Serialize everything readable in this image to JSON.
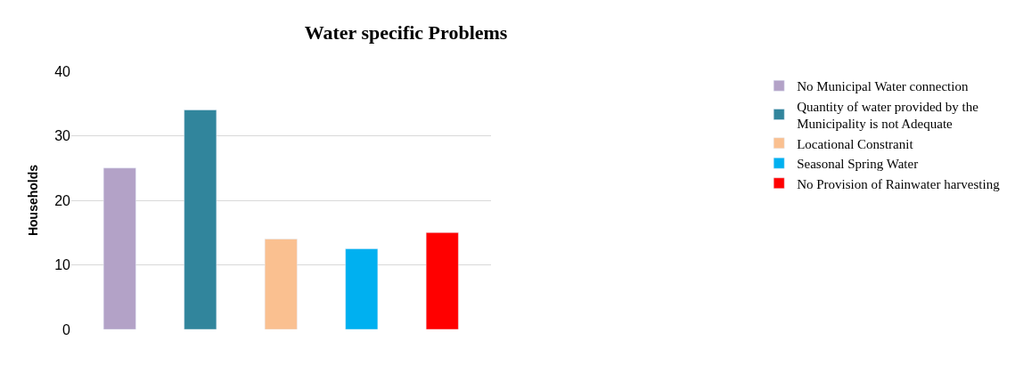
{
  "chart_data": {
    "type": "bar",
    "title": "Water specific Problems",
    "ylabel": "Households",
    "categories": [
      null,
      null,
      null,
      null,
      null
    ],
    "series": [
      {
        "name": "No Municipal Water connection",
        "color": "#b3a2c7",
        "values": [
          25,
          null,
          null,
          null,
          null
        ]
      },
      {
        "name": "Quantity of water provided by the Municipality is not Adequate",
        "color": "#31859c",
        "values": [
          null,
          34,
          null,
          null,
          null
        ]
      },
      {
        "name": "Locational Constranit",
        "color": "#fac090",
        "values": [
          null,
          null,
          14,
          null,
          null
        ]
      },
      {
        "name": "Seasonal Spring Water",
        "color": "#00b0f0",
        "values": [
          null,
          null,
          null,
          12.5,
          null
        ]
      },
      {
        "name": "No Provision of Rainwater harvesting",
        "color": "#ff0000",
        "values": [
          null,
          null,
          null,
          null,
          15
        ]
      }
    ],
    "ylim": [
      0,
      40
    ],
    "yticks": [
      0,
      10,
      20,
      30,
      40
    ],
    "grid": "y",
    "legend": "right"
  }
}
